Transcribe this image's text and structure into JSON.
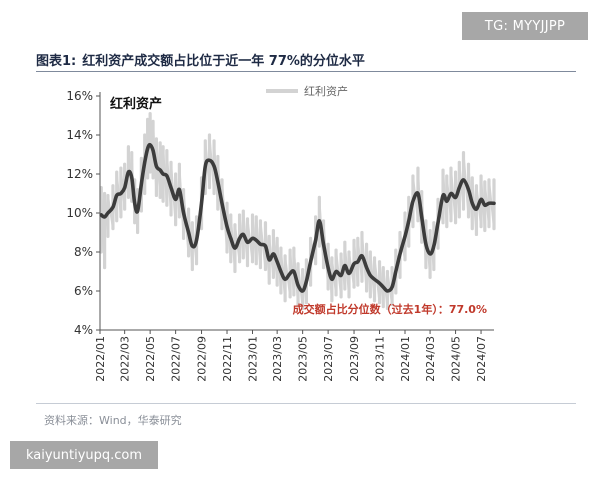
{
  "watermark_top": "TG: MYYJJPP",
  "watermark_bottom": "kaiyuntiyupq.com",
  "figure": {
    "label": "图表1:",
    "title": "红利资产成交额占比位于近一年 77%的分位水平"
  },
  "source": "资料来源：Wind，华泰研究",
  "colors": {
    "line": "#3c3c3c",
    "band": "#d3d3d3",
    "annotation": "#c0392b",
    "title": "#1e2a44",
    "axis": "#555555"
  },
  "chart_data": {
    "type": "line",
    "title": "",
    "xlabel": "",
    "ylabel": "",
    "ylim": [
      4,
      16
    ],
    "y_ticks": [
      "4%",
      "6%",
      "8%",
      "10%",
      "12%",
      "14%",
      "16%"
    ],
    "x_ticks": [
      "2022/01",
      "2022/03",
      "2022/05",
      "2022/07",
      "2022/09",
      "2022/11",
      "2023/01",
      "2023/03",
      "2023/05",
      "2023/07",
      "2023/09",
      "2023/11",
      "2024/01",
      "2024/03",
      "2024/05",
      "2024/07"
    ],
    "x_range": [
      "2022-01-01",
      "2024-08-01"
    ],
    "in_plot_label": "红利资产",
    "legend": [
      "红利资产"
    ],
    "legend_position": "top-center",
    "grid": false,
    "annotation": "成交额占比分位数（过去1年）：77.0%",
    "series": [
      {
        "name": "红利资产",
        "style": "smoothed",
        "x": [
          "2022-01-04",
          "2022-01-12",
          "2022-01-20",
          "2022-02-01",
          "2022-02-10",
          "2022-02-20",
          "2022-03-01",
          "2022-03-10",
          "2022-03-18",
          "2022-03-25",
          "2022-04-01",
          "2022-04-10",
          "2022-04-18",
          "2022-04-25",
          "2022-05-01",
          "2022-05-08",
          "2022-05-16",
          "2022-05-25",
          "2022-06-01",
          "2022-06-10",
          "2022-06-20",
          "2022-07-01",
          "2022-07-10",
          "2022-07-20",
          "2022-08-01",
          "2022-08-10",
          "2022-08-20",
          "2022-09-01",
          "2022-09-10",
          "2022-09-20",
          "2022-10-01",
          "2022-10-10",
          "2022-10-20",
          "2022-11-01",
          "2022-11-10",
          "2022-11-20",
          "2022-12-01",
          "2022-12-10",
          "2022-12-20",
          "2023-01-01",
          "2023-01-10",
          "2023-01-20",
          "2023-02-01",
          "2023-02-10",
          "2023-02-20",
          "2023-03-01",
          "2023-03-10",
          "2023-03-20",
          "2023-04-01",
          "2023-04-10",
          "2023-04-20",
          "2023-05-01",
          "2023-05-10",
          "2023-05-20",
          "2023-06-01",
          "2023-06-10",
          "2023-06-20",
          "2023-07-01",
          "2023-07-10",
          "2023-07-20",
          "2023-08-01",
          "2023-08-10",
          "2023-08-20",
          "2023-09-01",
          "2023-09-10",
          "2023-09-20",
          "2023-10-01",
          "2023-10-10",
          "2023-10-20",
          "2023-11-01",
          "2023-11-10",
          "2023-11-20",
          "2023-12-01",
          "2023-12-10",
          "2023-12-20",
          "2024-01-01",
          "2024-01-10",
          "2024-01-20",
          "2024-02-01",
          "2024-02-10",
          "2024-02-20",
          "2024-03-01",
          "2024-03-10",
          "2024-03-20",
          "2024-04-01",
          "2024-04-10",
          "2024-04-20",
          "2024-05-01",
          "2024-05-10",
          "2024-05-20",
          "2024-06-01",
          "2024-06-10",
          "2024-06-20",
          "2024-07-01",
          "2024-07-10",
          "2024-07-20",
          "2024-08-01"
        ],
        "y": [
          9.9,
          9.8,
          10.0,
          10.3,
          10.9,
          11.0,
          11.3,
          12.1,
          11.8,
          10.5,
          10.1,
          11.5,
          12.6,
          13.3,
          13.5,
          13.2,
          12.4,
          12.2,
          12.0,
          11.9,
          11.3,
          10.7,
          11.2,
          10.0,
          9.0,
          8.3,
          8.6,
          10.5,
          12.4,
          12.7,
          12.4,
          11.6,
          10.5,
          9.3,
          8.7,
          8.2,
          8.7,
          8.9,
          8.5,
          8.7,
          8.6,
          8.4,
          8.3,
          7.6,
          7.9,
          7.5,
          7.0,
          6.6,
          6.9,
          7.0,
          6.3,
          6.0,
          6.5,
          7.5,
          8.6,
          9.6,
          8.4,
          7.2,
          6.6,
          7.0,
          6.8,
          7.3,
          6.9,
          7.4,
          7.5,
          7.8,
          7.2,
          6.8,
          6.6,
          6.4,
          6.2,
          6.0,
          6.2,
          7.0,
          7.9,
          8.8,
          9.6,
          10.6,
          11.0,
          9.8,
          8.4,
          7.9,
          8.3,
          9.5,
          10.9,
          10.6,
          11.0,
          10.8,
          11.3,
          11.7,
          11.2,
          10.5,
          10.2,
          10.7,
          10.4,
          10.5,
          10.5
        ]
      },
      {
        "name": "红利资产",
        "style": "band",
        "x": [
          "2022-01-04",
          "2022-01-12",
          "2022-01-20",
          "2022-02-01",
          "2022-02-10",
          "2022-02-20",
          "2022-03-01",
          "2022-03-10",
          "2022-03-18",
          "2022-03-25",
          "2022-04-01",
          "2022-04-10",
          "2022-04-18",
          "2022-04-25",
          "2022-05-01",
          "2022-05-08",
          "2022-05-16",
          "2022-05-25",
          "2022-06-01",
          "2022-06-10",
          "2022-06-20",
          "2022-07-01",
          "2022-07-10",
          "2022-07-20",
          "2022-08-01",
          "2022-08-10",
          "2022-08-20",
          "2022-09-01",
          "2022-09-10",
          "2022-09-20",
          "2022-10-01",
          "2022-10-10",
          "2022-10-20",
          "2022-11-01",
          "2022-11-10",
          "2022-11-20",
          "2022-12-01",
          "2022-12-10",
          "2022-12-20",
          "2023-01-01",
          "2023-01-10",
          "2023-01-20",
          "2023-02-01",
          "2023-02-10",
          "2023-02-20",
          "2023-03-01",
          "2023-03-10",
          "2023-03-20",
          "2023-04-01",
          "2023-04-10",
          "2023-04-20",
          "2023-05-01",
          "2023-05-10",
          "2023-05-20",
          "2023-06-01",
          "2023-06-10",
          "2023-06-20",
          "2023-07-01",
          "2023-07-10",
          "2023-07-20",
          "2023-08-01",
          "2023-08-10",
          "2023-08-20",
          "2023-09-01",
          "2023-09-10",
          "2023-09-20",
          "2023-10-01",
          "2023-10-10",
          "2023-10-20",
          "2023-11-01",
          "2023-11-10",
          "2023-11-20",
          "2023-12-01",
          "2023-12-10",
          "2023-12-20",
          "2024-01-01",
          "2024-01-10",
          "2024-01-20",
          "2024-02-01",
          "2024-02-10",
          "2024-02-20",
          "2024-03-01",
          "2024-03-10",
          "2024-03-20",
          "2024-04-01",
          "2024-04-10",
          "2024-04-20",
          "2024-05-01",
          "2024-05-10",
          "2024-05-20",
          "2024-06-01",
          "2024-06-10",
          "2024-06-20",
          "2024-07-01",
          "2024-07-10",
          "2024-07-20",
          "2024-08-01"
        ],
        "low": [
          8.0,
          7.2,
          8.8,
          9.2,
          9.6,
          9.8,
          10.2,
          10.8,
          10.6,
          9.5,
          9.0,
          10.1,
          11.0,
          11.8,
          12.1,
          11.8,
          10.9,
          10.8,
          10.6,
          10.4,
          9.9,
          9.4,
          9.8,
          8.7,
          7.8,
          7.1,
          7.4,
          9.2,
          11.0,
          11.3,
          11.0,
          10.2,
          9.2,
          8.0,
          7.5,
          7.0,
          7.5,
          7.7,
          7.3,
          7.5,
          7.4,
          7.2,
          7.1,
          6.4,
          6.7,
          6.3,
          5.9,
          5.5,
          5.7,
          5.8,
          5.3,
          5.1,
          5.4,
          6.3,
          7.4,
          8.3,
          7.2,
          6.1,
          5.5,
          5.8,
          5.7,
          6.1,
          5.7,
          6.2,
          6.3,
          6.5,
          6.0,
          5.7,
          5.5,
          5.4,
          5.2,
          5.1,
          5.3,
          5.9,
          6.7,
          7.6,
          8.3,
          9.3,
          9.6,
          8.5,
          7.2,
          6.7,
          7.1,
          8.2,
          9.5,
          9.3,
          9.6,
          9.5,
          9.8,
          10.2,
          9.8,
          9.2,
          8.9,
          9.3,
          9.1,
          9.3,
          9.2
        ],
        "high": [
          11.3,
          11.0,
          10.9,
          11.4,
          12.1,
          12.3,
          12.5,
          13.4,
          13.1,
          11.7,
          11.2,
          12.8,
          14.0,
          14.8,
          15.1,
          14.7,
          13.8,
          13.6,
          13.4,
          13.2,
          12.6,
          12.0,
          12.5,
          11.2,
          10.2,
          9.5,
          9.8,
          11.8,
          13.7,
          14.0,
          13.7,
          12.9,
          11.7,
          10.5,
          9.9,
          9.4,
          9.9,
          10.1,
          9.7,
          9.9,
          9.8,
          9.6,
          9.5,
          8.8,
          9.1,
          8.7,
          8.2,
          7.8,
          8.1,
          8.2,
          7.4,
          7.1,
          7.6,
          8.7,
          9.8,
          10.8,
          9.6,
          8.4,
          7.7,
          8.1,
          7.9,
          8.5,
          8.0,
          8.6,
          8.7,
          9.0,
          8.4,
          8.0,
          7.7,
          7.5,
          7.2,
          7.0,
          7.2,
          8.1,
          9.0,
          10.0,
          10.8,
          11.9,
          12.3,
          11.1,
          9.6,
          9.1,
          9.5,
          10.7,
          12.2,
          11.9,
          12.3,
          12.1,
          12.6,
          13.1,
          12.5,
          11.8,
          11.4,
          11.9,
          11.6,
          11.7,
          11.7
        ]
      }
    ]
  }
}
